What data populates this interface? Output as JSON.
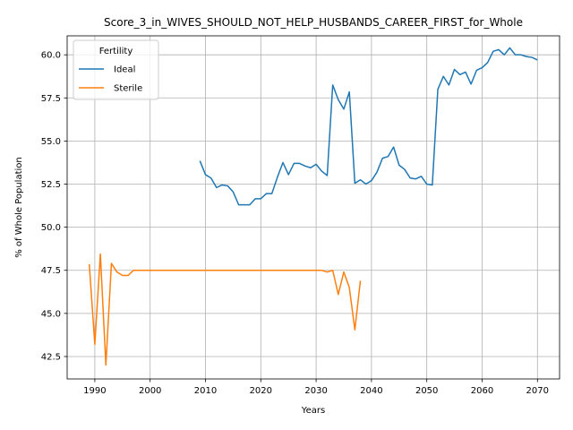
{
  "chart_data": {
    "type": "line",
    "title": "Score_3_in_WIVES_SHOULD_NOT_HELP_HUSBANDS_CAREER_FIRST_for_Whole",
    "xlabel": "Years",
    "ylabel": "% of Whole Population",
    "xlim": [
      1985,
      2074
    ],
    "ylim": [
      41.2,
      61.1
    ],
    "xticks": [
      1990,
      2000,
      2010,
      2020,
      2030,
      2040,
      2050,
      2060,
      2070
    ],
    "yticks": [
      42.5,
      45.0,
      47.5,
      50.0,
      52.5,
      55.0,
      57.5,
      60.0
    ],
    "xtick_labels": [
      "1990",
      "2000",
      "2010",
      "2020",
      "2030",
      "2040",
      "2050",
      "2060",
      "2070"
    ],
    "ytick_labels": [
      "42.5",
      "45.0",
      "47.5",
      "50.0",
      "52.5",
      "55.0",
      "57.5",
      "60.0"
    ],
    "grid": true,
    "legend": {
      "title": "Fertility",
      "placement": "top-left"
    },
    "series": [
      {
        "name": "Ideal",
        "color": "#1f77b4",
        "x": [
          2009,
          2010,
          2011,
          2012,
          2013,
          2014,
          2015,
          2016,
          2017,
          2018,
          2019,
          2020,
          2021,
          2022,
          2023,
          2024,
          2025,
          2026,
          2027,
          2028,
          2029,
          2030,
          2031,
          2032,
          2033,
          2034,
          2035,
          2036,
          2037,
          2038,
          2039,
          2040,
          2041,
          2042,
          2043,
          2044,
          2045,
          2046,
          2047,
          2048,
          2049,
          2050,
          2051,
          2052,
          2053,
          2054,
          2055,
          2056,
          2057,
          2058,
          2059,
          2060,
          2061,
          2062,
          2063,
          2064,
          2065,
          2066,
          2067,
          2068,
          2069,
          2070
        ],
        "values": [
          53.85,
          53.05,
          52.85,
          52.3,
          52.45,
          52.4,
          52.05,
          51.3,
          51.3,
          51.3,
          51.65,
          51.65,
          51.95,
          51.95,
          52.9,
          53.75,
          53.05,
          53.7,
          53.7,
          53.55,
          53.45,
          53.65,
          53.25,
          53.0,
          58.25,
          57.4,
          56.85,
          57.85,
          52.55,
          52.75,
          52.5,
          52.7,
          53.2,
          54.0,
          54.1,
          54.65,
          53.6,
          53.35,
          52.85,
          52.8,
          52.95,
          52.5,
          52.45,
          58.0,
          58.75,
          58.25,
          59.15,
          58.85,
          59.0,
          58.3,
          59.1,
          59.25,
          59.55,
          60.2,
          60.3,
          60.0,
          60.4,
          60.0,
          60.0,
          59.9,
          59.85,
          59.7
        ]
      },
      {
        "name": "Sterile",
        "color": "#ff7f0e",
        "x": [
          1989,
          1990,
          1991,
          1992,
          1993,
          1994,
          1995,
          1996,
          1997,
          1998,
          1999,
          2000,
          2001,
          2002,
          2003,
          2004,
          2005,
          2006,
          2007,
          2008,
          2009,
          2010,
          2011,
          2012,
          2013,
          2014,
          2015,
          2016,
          2017,
          2018,
          2019,
          2020,
          2021,
          2022,
          2023,
          2024,
          2025,
          2026,
          2027,
          2028,
          2029,
          2030,
          2031,
          2032,
          2033,
          2034,
          2035,
          2036,
          2037,
          2038
        ],
        "values": [
          47.85,
          43.2,
          48.45,
          42.0,
          47.9,
          47.4,
          47.2,
          47.2,
          47.5,
          47.5,
          47.5,
          47.5,
          47.5,
          47.5,
          47.5,
          47.5,
          47.5,
          47.5,
          47.5,
          47.5,
          47.5,
          47.5,
          47.5,
          47.5,
          47.5,
          47.5,
          47.5,
          47.5,
          47.5,
          47.5,
          47.5,
          47.5,
          47.5,
          47.5,
          47.5,
          47.5,
          47.5,
          47.5,
          47.5,
          47.5,
          47.5,
          47.5,
          47.5,
          47.4,
          47.5,
          46.1,
          47.4,
          46.5,
          44.05,
          46.9
        ]
      }
    ]
  }
}
